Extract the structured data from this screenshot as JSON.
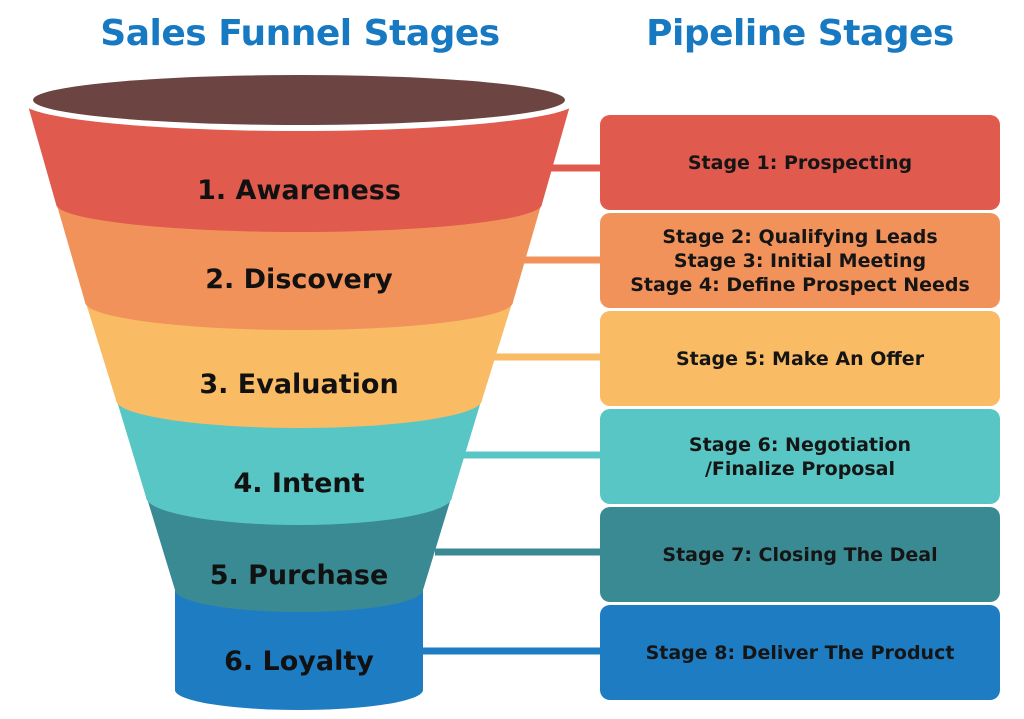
{
  "headings": {
    "funnel": "Sales Funnel Stages",
    "pipeline": "Pipeline Stages"
  },
  "colors": {
    "heading": "#1679c2",
    "funnel_top": "#6c4442",
    "stage_1": "#e05a4e",
    "stage_2": "#f1925a",
    "stage_3": "#f9bb64",
    "stage_4": "#58c6c4",
    "stage_5": "#3a8a93",
    "stage_6": "#1e7cc3"
  },
  "funnel_stages": [
    {
      "label": "1. Awareness"
    },
    {
      "label": "2. Discovery"
    },
    {
      "label": "3. Evaluation"
    },
    {
      "label": "4. Intent"
    },
    {
      "label": "5. Purchase"
    },
    {
      "label": "6. Loyalty"
    }
  ],
  "pipeline_stages": [
    {
      "lines": [
        "Stage 1: Prospecting"
      ]
    },
    {
      "lines": [
        "Stage 2: Qualifying Leads",
        "Stage 3: Initial Meeting",
        "Stage 4: Define Prospect Needs"
      ]
    },
    {
      "lines": [
        "Stage 5: Make An Offer"
      ]
    },
    {
      "lines": [
        "Stage 6: Negotiation",
        "/Finalize Proposal"
      ]
    },
    {
      "lines": [
        "Stage 7: Closing The Deal"
      ]
    },
    {
      "lines": [
        "Stage 8: Deliver The Product"
      ]
    }
  ]
}
